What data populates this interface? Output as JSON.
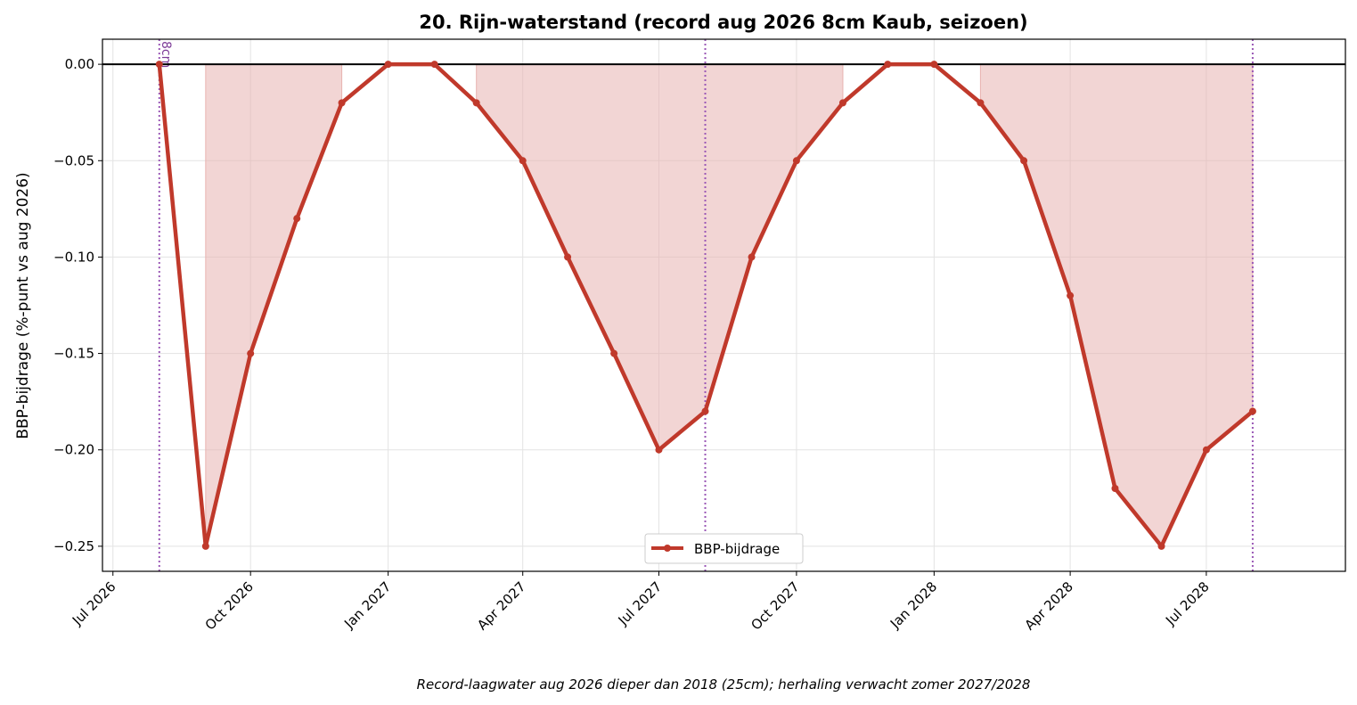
{
  "chart_data": {
    "type": "line",
    "title": "20. Rijn-waterstand (record aug 2026 8cm Kaub, seizoen)",
    "ylabel": "BBP-bijdrage (%-punt vs aug 2026)",
    "xlabel": "",
    "caption": "Record-laagwater aug 2026 dieper dan 2018 (25cm); herhaling verwacht zomer 2027/2028",
    "ylim": [
      -0.263,
      0.013
    ],
    "xlim": [
      "2026-06-24",
      "2028-10-02"
    ],
    "yticks": [
      0.0,
      -0.05,
      -0.1,
      -0.15,
      -0.2,
      -0.25
    ],
    "ytick_labels": [
      "0.00",
      "−0.05",
      "−0.10",
      "−0.15",
      "−0.20",
      "−0.25"
    ],
    "xticks": [
      "2026-07-01",
      "2026-10-01",
      "2027-01-01",
      "2027-04-01",
      "2027-07-01",
      "2027-10-01",
      "2028-01-01",
      "2028-04-01",
      "2028-07-01"
    ],
    "xtick_labels": [
      "Jul 2026",
      "Oct 2026",
      "Jan 2027",
      "Apr 2027",
      "Jul 2027",
      "Oct 2027",
      "Jan 2028",
      "Apr 2028",
      "Jul 2028"
    ],
    "grid": true,
    "legend_position": "bottom-center",
    "series": [
      {
        "name": "BBP-bijdrage",
        "color": "#c0392b",
        "x": [
          "2026-08-01",
          "2026-09-01",
          "2026-10-01",
          "2026-11-01",
          "2026-12-01",
          "2027-01-01",
          "2027-02-01",
          "2027-03-01",
          "2027-04-01",
          "2027-05-01",
          "2027-06-01",
          "2027-07-01",
          "2027-08-01",
          "2027-09-01",
          "2027-10-01",
          "2027-11-01",
          "2027-12-01",
          "2028-01-01",
          "2028-02-01",
          "2028-03-01",
          "2028-04-01",
          "2028-05-01",
          "2028-06-01",
          "2028-07-01",
          "2028-08-01"
        ],
        "y": [
          0.0,
          -0.25,
          -0.15,
          -0.08,
          -0.02,
          0.0,
          0.0,
          -0.02,
          -0.05,
          -0.1,
          -0.15,
          -0.2,
          -0.18,
          -0.1,
          -0.05,
          -0.02,
          0.0,
          0.0,
          -0.02,
          -0.05,
          -0.12,
          -0.22,
          -0.25,
          -0.2,
          -0.18
        ]
      }
    ],
    "shaded_spans": [
      {
        "x": [
          "2026-09-01",
          "2026-10-01",
          "2026-11-01",
          "2026-12-01"
        ],
        "y": [
          -0.25,
          -0.15,
          -0.08,
          -0.02
        ],
        "color": "#e8b3b0"
      },
      {
        "x": [
          "2027-03-01",
          "2027-04-01",
          "2027-05-01",
          "2027-06-01",
          "2027-07-01",
          "2027-08-01",
          "2027-09-01",
          "2027-10-01",
          "2027-11-01"
        ],
        "y": [
          -0.02,
          -0.05,
          -0.1,
          -0.15,
          -0.2,
          -0.18,
          -0.1,
          -0.05,
          -0.02
        ],
        "color": "#e8b3b0"
      },
      {
        "x": [
          "2028-02-01",
          "2028-03-01",
          "2028-04-01",
          "2028-05-01",
          "2028-06-01",
          "2028-07-01",
          "2028-08-01"
        ],
        "y": [
          -0.02,
          -0.05,
          -0.12,
          -0.22,
          -0.25,
          -0.2,
          -0.18
        ],
        "color": "#e8b3b0"
      }
    ],
    "vlines": [
      {
        "x": "2026-08-01",
        "label": "8cm",
        "color": "#9b59b6"
      },
      {
        "x": "2027-08-01",
        "label": "",
        "color": "#9b59b6"
      },
      {
        "x": "2028-08-01",
        "label": "",
        "color": "#9b59b6"
      }
    ],
    "hline": {
      "y": 0.0,
      "color": "#000000"
    }
  }
}
